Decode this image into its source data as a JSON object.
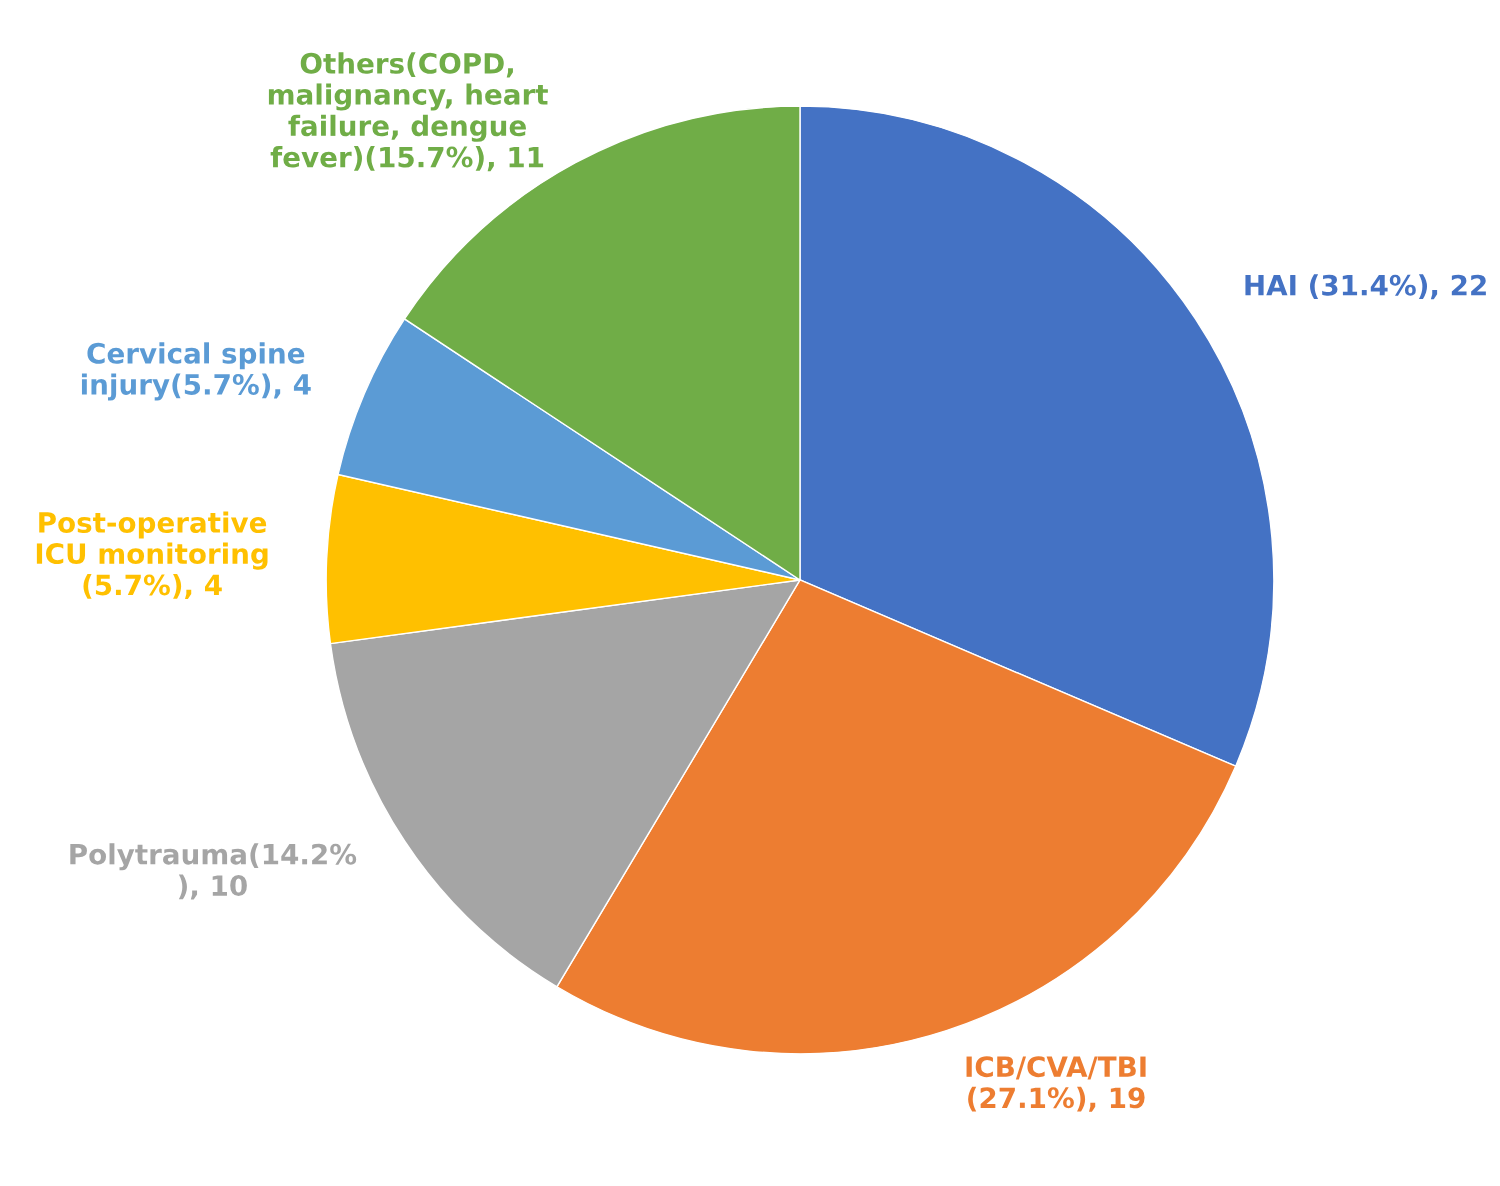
{
  "chart_data": {
    "type": "pie",
    "categories": [
      "HAI (31.4%), 22",
      "ICB/CVA/TBI\n(27.1%), 19",
      "Polytrauma(14.2%\n), 10",
      "Post-operative\nICU monitoring\n(5.7%), 4",
      "Cervical spine\ninjury(5.7%), 4",
      "Others(COPD,\nmalignancy, heart\nfailure, dengue\nfever)(15.7%), 11"
    ],
    "values": [
      22,
      19,
      10,
      4,
      4,
      11
    ],
    "colors": [
      "#4472c4",
      "#ed7d31",
      "#a5a5a5",
      "#ffc000",
      "#5b9bd5",
      "#70ad47"
    ]
  }
}
